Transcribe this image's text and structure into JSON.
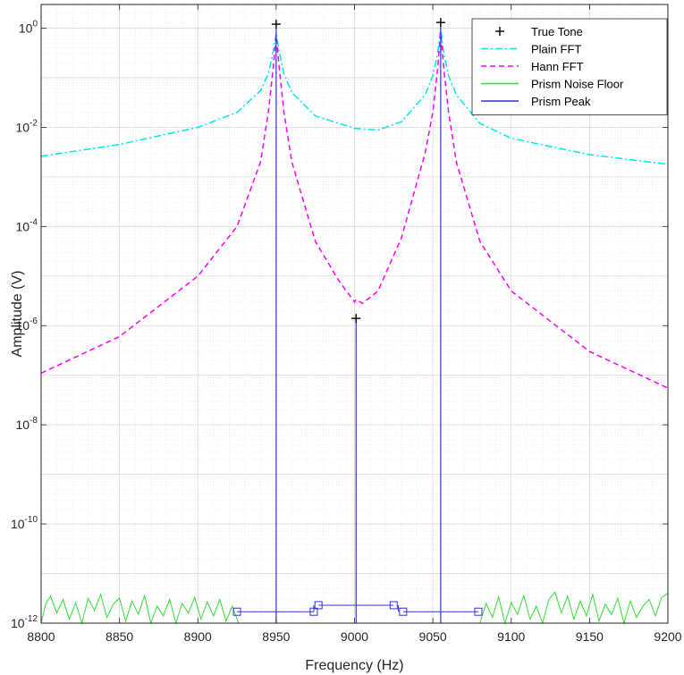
{
  "chart_data": {
    "type": "line",
    "xlabel": "Frequency (Hz)",
    "ylabel": "Amplitude (V)",
    "xlim": [
      8800,
      9200
    ],
    "ylim": [
      1e-12,
      3
    ],
    "yscale": "log",
    "grid": true,
    "minor_grid": true,
    "legend_position": "top-right",
    "x_ticks": [
      "8800",
      "8850",
      "8900",
      "8950",
      "9000",
      "9050",
      "9100",
      "9150",
      "9200"
    ],
    "y_ticks": [
      {
        "base": "10",
        "exp": "-12"
      },
      {
        "base": "10",
        "exp": "-10"
      },
      {
        "base": "10",
        "exp": "-8"
      },
      {
        "base": "10",
        "exp": "-6"
      },
      {
        "base": "10",
        "exp": "-4"
      },
      {
        "base": "10",
        "exp": "-2"
      },
      {
        "base": "10",
        "exp": "0"
      }
    ],
    "series": [
      {
        "name": "True Tone",
        "style": "markers",
        "color": "#000000",
        "x": [
          8950,
          9001,
          9055
        ],
        "y": [
          1.2,
          1.4e-06,
          1.3
        ]
      },
      {
        "name": "Plain FFT",
        "style": "dash-dot",
        "color": "#00e5ee",
        "x": [
          8800,
          8850,
          8900,
          8925,
          8940,
          8945,
          8948,
          8950,
          8952,
          8955,
          8960,
          8975,
          9000,
          9015,
          9030,
          9045,
          9050,
          9053,
          9055,
          9057,
          9060,
          9065,
          9080,
          9100,
          9150,
          9200
        ],
        "y": [
          0.0026,
          0.0045,
          0.01,
          0.02,
          0.055,
          0.12,
          0.32,
          0.8,
          0.32,
          0.12,
          0.05,
          0.017,
          0.0095,
          0.0088,
          0.013,
          0.045,
          0.11,
          0.3,
          1.0,
          0.3,
          0.11,
          0.045,
          0.012,
          0.006,
          0.0028,
          0.0018
        ]
      },
      {
        "name": "Hann FFT",
        "style": "dashed",
        "color": "#ff00ff",
        "x": [
          8800,
          8850,
          8900,
          8925,
          8940,
          8945,
          8948,
          8950,
          8952,
          8955,
          8960,
          8975,
          8990,
          9000,
          9001,
          9005,
          9015,
          9030,
          9045,
          9050,
          9053,
          9055,
          9057,
          9060,
          9065,
          9080,
          9100,
          9150,
          9200
        ],
        "y": [
          1.1e-07,
          6e-07,
          1e-05,
          0.0001,
          0.002,
          0.02,
          0.15,
          0.7,
          0.15,
          0.02,
          0.002,
          5e-05,
          8e-06,
          3e-06,
          3.4e-06,
          2.8e-06,
          5e-06,
          6e-05,
          0.003,
          0.02,
          0.15,
          0.8,
          0.15,
          0.02,
          0.002,
          5e-05,
          5e-06,
          3e-07,
          5.5e-08
        ]
      },
      {
        "name": "Prism Noise Floor",
        "style": "solid",
        "color": "#33dd33",
        "x": [
          8800,
          8803,
          8806,
          8810,
          8814,
          8818,
          8822,
          8826,
          8830,
          8834,
          8838,
          8842,
          8846,
          8850,
          8854,
          8858,
          8862,
          8866,
          8870,
          8874,
          8878,
          8882,
          8886,
          8890,
          8894,
          8898,
          8902,
          8906,
          8910,
          8914,
          8918,
          8922,
          8926,
          9080,
          9084,
          9088,
          9092,
          9096,
          9100,
          9104,
          9108,
          9112,
          9116,
          9120,
          9124,
          9128,
          9132,
          9136,
          9140,
          9144,
          9148,
          9152,
          9156,
          9160,
          9164,
          9168,
          9172,
          9176,
          9180,
          9184,
          9188,
          9192,
          9196,
          9200
        ],
        "y": [
          1e-12,
          2.5e-12,
          3.5e-12,
          1.6e-12,
          3e-12,
          1.2e-12,
          2.6e-12,
          1e-12,
          3.2e-12,
          1.8e-12,
          3.8e-12,
          1.3e-12,
          2.4e-12,
          3.2e-12,
          1.1e-12,
          2.8e-12,
          1.5e-12,
          3.6e-12,
          1e-12,
          2.2e-12,
          1.4e-12,
          3e-12,
          1e-12,
          2.5e-12,
          1.6e-12,
          3.3e-12,
          1.2e-12,
          2.7e-12,
          1.4e-12,
          3e-12,
          1.1e-12,
          2.2e-12,
          1e-12,
          1e-12,
          2.5e-12,
          1.3e-12,
          3.4e-12,
          1e-12,
          2.6e-12,
          1.5e-12,
          3.6e-12,
          1.2e-12,
          2.2e-12,
          1e-12,
          3e-12,
          4.2e-12,
          1.6e-12,
          3.5e-12,
          1.2e-12,
          2.8e-12,
          1.4e-12,
          3.8e-12,
          1.1e-12,
          2.4e-12,
          1.5e-12,
          3.2e-12,
          1e-12,
          2.8e-12,
          1.3e-12,
          2.2e-12,
          3e-12,
          1.4e-12,
          3.3e-12,
          4e-12
        ]
      },
      {
        "name": "Prism Peak",
        "style": "solid-markers",
        "color": "#3333cc",
        "stems": [
          {
            "x": 8950,
            "y": 1.0
          },
          {
            "x": 9001,
            "y": 1.4e-06
          },
          {
            "x": 9055,
            "y": 1.2
          }
        ],
        "steps": [
          {
            "x": [
              8925,
              8974
            ],
            "y": 1.7e-12
          },
          {
            "x": 8974,
            "y_from": 1.7e-12,
            "y_to": 2.3e-12
          },
          {
            "x": [
              8977,
              9025
            ],
            "y": 2.3e-12
          },
          {
            "x": 9028,
            "y_from": 2.3e-12,
            "y_to": 1.7e-12
          },
          {
            "x": [
              9031,
              9079
            ],
            "y": 1.7e-12
          }
        ],
        "markers": [
          {
            "x": 8925,
            "y": 1.7e-12
          },
          {
            "x": 8974,
            "y": 1.7e-12
          },
          {
            "x": 8977,
            "y": 2.3e-12
          },
          {
            "x": 9025,
            "y": 2.3e-12
          },
          {
            "x": 9031,
            "y": 1.7e-12
          },
          {
            "x": 9079,
            "y": 1.7e-12
          }
        ]
      }
    ]
  }
}
